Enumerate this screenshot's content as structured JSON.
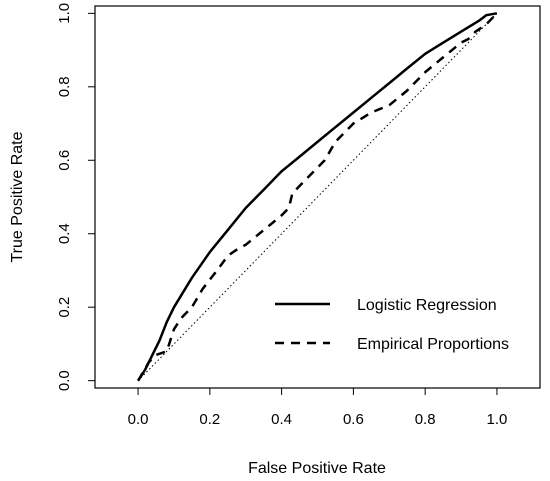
{
  "chart_data": {
    "type": "line",
    "title": "",
    "xlabel": "False Positive Rate",
    "ylabel": "True Positive Rate",
    "xlim": [
      -0.12,
      1.12
    ],
    "ylim": [
      -0.02,
      1.02
    ],
    "xticks": [
      0.0,
      0.2,
      0.4,
      0.6,
      0.8,
      1.0
    ],
    "yticks": [
      0.0,
      0.2,
      0.4,
      0.6,
      0.8,
      1.0
    ],
    "xtick_labels": [
      "0.0",
      "0.2",
      "0.4",
      "0.6",
      "0.8",
      "1.0"
    ],
    "ytick_labels": [
      "0.0",
      "0.2",
      "0.4",
      "0.6",
      "0.8",
      "1.0"
    ],
    "grid": false,
    "legend_position": "bottom-right",
    "series": [
      {
        "name": "Logistic Regression",
        "style": "solid",
        "color": "#000000",
        "x": [
          0.0,
          0.02,
          0.04,
          0.06,
          0.08,
          0.1,
          0.15,
          0.2,
          0.25,
          0.3,
          0.35,
          0.4,
          0.45,
          0.5,
          0.55,
          0.6,
          0.65,
          0.7,
          0.75,
          0.8,
          0.85,
          0.9,
          0.95,
          0.97,
          1.0
        ],
        "y": [
          0.0,
          0.03,
          0.07,
          0.11,
          0.16,
          0.2,
          0.28,
          0.35,
          0.41,
          0.47,
          0.52,
          0.57,
          0.61,
          0.65,
          0.69,
          0.73,
          0.77,
          0.81,
          0.85,
          0.89,
          0.92,
          0.95,
          0.98,
          0.995,
          1.0
        ]
      },
      {
        "name": "Empirical Proportions",
        "style": "dashed",
        "color": "#000000",
        "x": [
          0.0,
          0.03,
          0.05,
          0.08,
          0.1,
          0.12,
          0.15,
          0.18,
          0.22,
          0.25,
          0.28,
          0.3,
          0.35,
          0.4,
          0.42,
          0.43,
          0.47,
          0.52,
          0.55,
          0.6,
          0.65,
          0.7,
          0.75,
          0.8,
          0.85,
          0.9,
          0.92,
          0.94,
          0.97,
          1.0
        ],
        "y": [
          0.0,
          0.05,
          0.07,
          0.08,
          0.14,
          0.17,
          0.2,
          0.25,
          0.3,
          0.34,
          0.36,
          0.37,
          0.41,
          0.45,
          0.47,
          0.51,
          0.55,
          0.6,
          0.65,
          0.7,
          0.73,
          0.75,
          0.79,
          0.84,
          0.88,
          0.92,
          0.93,
          0.95,
          0.97,
          1.0
        ]
      },
      {
        "name": "",
        "style": "dotted",
        "color": "#000000",
        "x": [
          0.0,
          1.0
        ],
        "y": [
          0.0,
          1.0
        ]
      }
    ]
  }
}
